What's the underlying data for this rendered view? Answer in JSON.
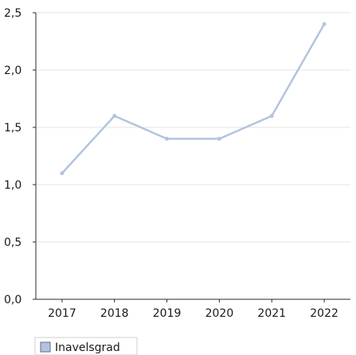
{
  "chart_data": {
    "type": "line",
    "categories": [
      "2017",
      "2018",
      "2019",
      "2020",
      "2021",
      "2022"
    ],
    "series": [
      {
        "name": "Inavelsgrad",
        "values": [
          1.1,
          1.6,
          1.4,
          1.4,
          1.6,
          2.4
        ]
      }
    ],
    "yticks": [
      "0,0",
      "0,5",
      "1,0",
      "1,5",
      "2,0",
      "2,5"
    ],
    "ylim": [
      0,
      2.5
    ],
    "grid": true,
    "legend_position": "bottom-left",
    "colors": {
      "line": "#b3c3de",
      "grid": "#e6e6e6",
      "axis": "#2b2b2b",
      "legend_swatch": "#b3c3de"
    }
  }
}
